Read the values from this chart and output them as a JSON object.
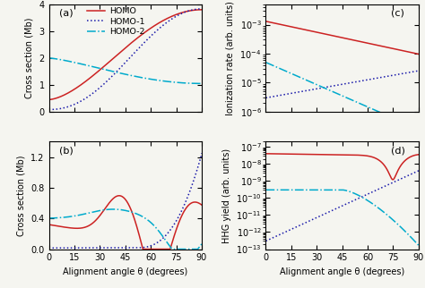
{
  "panels": [
    "(a)",
    "(b)",
    "(c)",
    "(d)"
  ],
  "legend_labels": [
    "HOMO",
    "HOMO-1",
    "HOMO-2"
  ],
  "line_colors": [
    "#cc2222",
    "#1a1aaa",
    "#00aacc"
  ],
  "line_styles": [
    "-",
    ":",
    "-."
  ],
  "xlabel": "Alignment angle θ (degrees)",
  "ylabel_a": "Cross section (Mb)",
  "ylabel_b": "Cross section (Mb)",
  "ylabel_c": "Ionization rate (arb. units)",
  "ylabel_d": "HHG yield (arb. units)",
  "xticks": [
    0,
    15,
    30,
    45,
    60,
    75,
    90
  ],
  "background": "#f5f5f0"
}
